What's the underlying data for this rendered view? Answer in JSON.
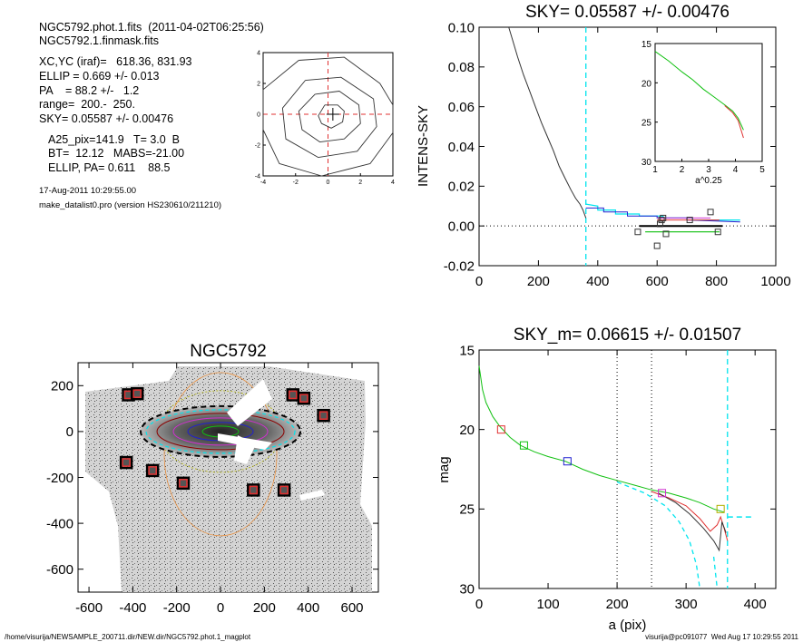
{
  "header": {
    "line1": "NGC5792.phot.1.fits  (2011-04-02T06:25:56)",
    "line2": "NGC5792.1.finmask.fits",
    "xcyc": "XC,YC (iraf)=   618.36, 831.93",
    "ellip": "ELLIP = 0.669 +/- 0.013",
    "pa": "PA    = 88.2 +/-   1.2",
    "range": "range=  200.-  250.",
    "sky": "SKY= 0.05587 +/- 0.00476",
    "a25": "A25_pix=141.9   T= 3.0  B",
    "bt": "BT=  12.12   MABS=-21.00",
    "ellip_pa": "ELLIP, PA= 0.611    88.5",
    "date": "17-Aug-2011 10:29:55.00",
    "program": "make_datalist0.pro (version HS230610/211210)"
  },
  "footer": {
    "left": "/home/visurija/NEWSAMPLE_200711.dir/NEW.dir/NGC5792.phot.1_magplot",
    "right": "visurija@pc091077  Wed Aug 17 10:29:55 2011"
  },
  "colors": {
    "cyan": "#00e5ee",
    "red": "#e03030",
    "green": "#10c010",
    "blue": "#2020d0",
    "magenta": "#d030d0",
    "orange": "#e89040",
    "olive": "#b0b000",
    "darkred": "#8b0000"
  },
  "chart_data": [
    {
      "type": "line",
      "name": "centering-contours",
      "title": "",
      "xlim": [
        -4,
        4
      ],
      "ylim": [
        -4,
        4
      ],
      "xticks": [
        "-4",
        "-2",
        "0",
        "2",
        "4"
      ],
      "yticks": [
        "-4",
        "-2",
        "0",
        "2",
        "4"
      ],
      "contours": [
        [
          [
            -0.2,
            0.6
          ],
          [
            0.6,
            0.6
          ],
          [
            1.0,
            0.2
          ],
          [
            0.9,
            -0.5
          ],
          [
            0.2,
            -0.9
          ],
          [
            -0.4,
            -0.6
          ],
          [
            -0.6,
            -0.1
          ],
          [
            -0.2,
            0.6
          ]
        ],
        [
          [
            -0.8,
            1.3
          ],
          [
            0.7,
            1.5
          ],
          [
            1.9,
            0.6
          ],
          [
            2.0,
            -0.6
          ],
          [
            1.0,
            -1.6
          ],
          [
            -0.5,
            -1.8
          ],
          [
            -1.6,
            -1.0
          ],
          [
            -1.8,
            0.2
          ],
          [
            -0.8,
            1.3
          ]
        ],
        [
          [
            -1.4,
            2.2
          ],
          [
            0.8,
            2.4
          ],
          [
            2.8,
            1.0
          ],
          [
            3.0,
            -0.8
          ],
          [
            1.8,
            -2.4
          ],
          [
            -0.6,
            -2.8
          ],
          [
            -2.6,
            -1.6
          ],
          [
            -2.8,
            0.4
          ],
          [
            -1.4,
            2.2
          ]
        ],
        [
          [
            -1.8,
            3.5
          ],
          [
            1.0,
            3.7
          ],
          [
            3.2,
            2.0
          ],
          [
            4.0,
            0.6
          ],
          [
            4.0,
            -1.2
          ],
          [
            2.6,
            -3.2
          ],
          [
            -0.4,
            -4.0
          ],
          [
            -3.0,
            -3.2
          ],
          [
            -4.0,
            -1.0
          ],
          [
            -4.0,
            1.6
          ],
          [
            -1.8,
            3.5
          ]
        ]
      ],
      "center": [
        0.3,
        0.0
      ]
    },
    {
      "type": "line",
      "name": "sky-profile",
      "title": "SKY= 0.05587 +/- 0.00476",
      "xlabel": "",
      "ylabel": "INTENS-SKY",
      "xlim": [
        0,
        1000
      ],
      "ylim": [
        -0.02,
        0.1
      ],
      "xticks": [
        "0",
        "200",
        "400",
        "600",
        "800",
        "1000"
      ],
      "yticks": [
        "-0.02",
        "0.00",
        "0.02",
        "0.04",
        "0.06",
        "0.08",
        "0.10"
      ],
      "vline_cyan": 360,
      "profile": [
        [
          100,
          0.102
        ],
        [
          110,
          0.095
        ],
        [
          130,
          0.085
        ],
        [
          150,
          0.076
        ],
        [
          170,
          0.068
        ],
        [
          190,
          0.06
        ],
        [
          210,
          0.052
        ],
        [
          230,
          0.045
        ],
        [
          250,
          0.038
        ],
        [
          270,
          0.03
        ],
        [
          290,
          0.024
        ],
        [
          310,
          0.018
        ],
        [
          325,
          0.014
        ],
        [
          340,
          0.011
        ],
        [
          350,
          0.008
        ],
        [
          360,
          0.004
        ]
      ],
      "tail_cyan": [
        [
          360,
          0.011
        ],
        [
          400,
          0.01
        ],
        [
          400,
          0.008
        ],
        [
          460,
          0.008
        ],
        [
          460,
          0.006
        ],
        [
          540,
          0.006
        ],
        [
          540,
          0.005
        ],
        [
          620,
          0.005
        ],
        [
          620,
          0.004
        ],
        [
          720,
          0.004
        ],
        [
          720,
          0.003
        ],
        [
          880,
          0.003
        ]
      ],
      "tail_blue": [
        [
          360,
          0.009
        ],
        [
          420,
          0.009
        ],
        [
          420,
          0.007
        ],
        [
          500,
          0.007
        ],
        [
          500,
          0.005
        ],
        [
          600,
          0.005
        ],
        [
          600,
          0.004
        ],
        [
          700,
          0.004
        ],
        [
          700,
          0.003
        ],
        [
          880,
          0.002
        ]
      ],
      "green_line": [
        [
          560,
          -0.003
        ],
        [
          810,
          -0.003
        ]
      ],
      "red_line": [
        [
          600,
          0.003
        ],
        [
          810,
          0.003
        ]
      ],
      "magenta_line": [
        [
          600,
          0.004
        ],
        [
          780,
          0.004
        ]
      ],
      "black_line": [
        [
          540,
          0.0
        ],
        [
          820,
          0.0
        ]
      ],
      "squares": [
        [
          535,
          -0.003
        ],
        [
          600,
          -0.01
        ],
        [
          610,
          0.001
        ],
        [
          615,
          0.003
        ],
        [
          620,
          0.004
        ],
        [
          630,
          -0.004
        ],
        [
          710,
          0.003
        ],
        [
          780,
          0.007
        ],
        [
          805,
          -0.003
        ]
      ]
    },
    {
      "type": "line",
      "name": "sky-profile-inset",
      "title": "",
      "xlabel": "a^0.25",
      "xlim": [
        1,
        5
      ],
      "ylim": [
        15,
        30
      ],
      "xticks": [
        "1",
        "2",
        "3",
        "4",
        "5"
      ],
      "yticks": [
        "15",
        "20",
        "25",
        "30"
      ],
      "green": [
        [
          1.0,
          16.0
        ],
        [
          1.5,
          17.2
        ],
        [
          2.0,
          18.6
        ],
        [
          2.4,
          19.6
        ],
        [
          2.8,
          20.8
        ],
        [
          3.2,
          21.8
        ],
        [
          3.6,
          22.8
        ],
        [
          3.9,
          23.6
        ],
        [
          4.1,
          24.5
        ],
        [
          4.3,
          26.0
        ]
      ],
      "red": [
        [
          3.6,
          22.9
        ],
        [
          3.9,
          23.8
        ],
        [
          4.1,
          24.8
        ],
        [
          4.3,
          27.0
        ]
      ]
    },
    {
      "type": "scatter",
      "name": "galaxy-image",
      "title": "NGC5792",
      "xlim": [
        -650,
        720
      ],
      "ylim": [
        -700,
        300
      ],
      "xticks": [
        "-600",
        "-400",
        "-200",
        "0",
        "200",
        "400",
        "600"
      ],
      "yticks": [
        "-600",
        "-400",
        "-200",
        "0",
        "200"
      ],
      "masked_sources": [
        [
          -420,
          160
        ],
        [
          -380,
          165
        ],
        [
          330,
          160
        ],
        [
          380,
          145
        ],
        [
          470,
          70
        ],
        [
          -430,
          -135
        ],
        [
          -310,
          -170
        ],
        [
          -170,
          -225
        ],
        [
          150,
          -255
        ],
        [
          290,
          -255
        ]
      ]
    },
    {
      "type": "line",
      "name": "magnitude-profile",
      "title": "SKY_m=  0.06615 +/- 0.01507",
      "xlabel": "a (pix)",
      "ylabel": "mag",
      "xlim": [
        0,
        430
      ],
      "ylim": [
        15,
        30
      ],
      "xticks": [
        "0",
        "100",
        "200",
        "300",
        "400"
      ],
      "yticks": [
        "15",
        "20",
        "25",
        "30"
      ],
      "vlines_dotted": [
        200,
        250
      ],
      "vline_cyan": 360,
      "green": [
        [
          0,
          16.0
        ],
        [
          5,
          17.5
        ],
        [
          10,
          18.3
        ],
        [
          20,
          19.2
        ],
        [
          30,
          19.8
        ],
        [
          45,
          20.5
        ],
        [
          60,
          21.0
        ],
        [
          80,
          21.4
        ],
        [
          100,
          21.7
        ],
        [
          125,
          22.0
        ],
        [
          150,
          22.5
        ],
        [
          175,
          22.9
        ],
        [
          200,
          23.2
        ],
        [
          225,
          23.5
        ],
        [
          250,
          23.8
        ],
        [
          275,
          24.0
        ],
        [
          300,
          24.3
        ],
        [
          320,
          24.6
        ],
        [
          340,
          25.0
        ],
        [
          355,
          25.2
        ]
      ],
      "red": [
        [
          250,
          23.9
        ],
        [
          275,
          24.3
        ],
        [
          300,
          24.8
        ],
        [
          320,
          25.6
        ],
        [
          335,
          26.4
        ],
        [
          345,
          26.0
        ],
        [
          350,
          25.5
        ],
        [
          355,
          26.2
        ],
        [
          360,
          27.0
        ]
      ],
      "black": [
        [
          260,
          24.0
        ],
        [
          285,
          24.6
        ],
        [
          305,
          25.3
        ],
        [
          325,
          26.2
        ],
        [
          340,
          27.0
        ],
        [
          348,
          27.6
        ],
        [
          352,
          25.8
        ],
        [
          358,
          26.5
        ]
      ],
      "cyan_dashed": [
        [
          200,
          23.3
        ],
        [
          240,
          24.0
        ],
        [
          270,
          24.8
        ],
        [
          290,
          25.8
        ],
        [
          305,
          27.0
        ],
        [
          315,
          28.5
        ],
        [
          320,
          30.0
        ]
      ],
      "cyan_dashed2": [
        [
          340,
          28.0
        ],
        [
          345,
          30.0
        ]
      ],
      "cyan_hline": [
        [
          360,
          25.5
        ],
        [
          395,
          25.5
        ]
      ],
      "squares": [
        [
          32,
          20.0,
          "red"
        ],
        [
          65,
          21.0,
          "green"
        ],
        [
          128,
          22.0,
          "blue"
        ],
        [
          265,
          24.0,
          "magenta"
        ],
        [
          350,
          25.0,
          "olive"
        ]
      ]
    }
  ]
}
